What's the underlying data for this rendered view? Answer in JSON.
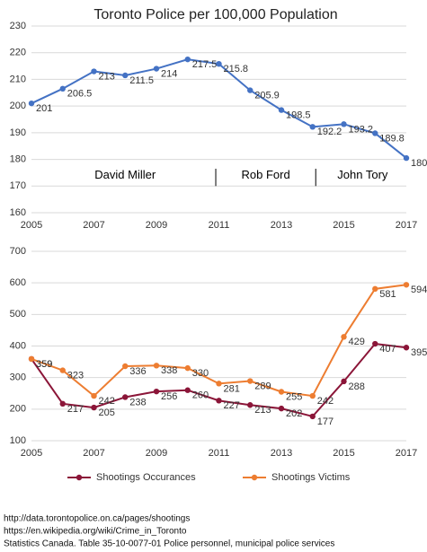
{
  "chart_data": [
    {
      "type": "line",
      "title": "Toronto Police per 100,000 Population",
      "x": [
        2005,
        2006,
        2007,
        2008,
        2009,
        2010,
        2011,
        2012,
        2013,
        2014,
        2015,
        2016,
        2017
      ],
      "series": [
        {
          "color": "#4472c4",
          "values": [
            201,
            206.5,
            213,
            211.5,
            214,
            217.5,
            215.8,
            205.9,
            198.5,
            192.2,
            193.2,
            189.8,
            180.5
          ]
        }
      ],
      "xlim": [
        2005,
        2017
      ],
      "xticks": [
        2005,
        2007,
        2009,
        2011,
        2013,
        2015,
        2017
      ],
      "ylim": [
        160,
        230
      ],
      "yticks": [
        160,
        170,
        180,
        190,
        200,
        210,
        220,
        230
      ],
      "grid": true,
      "annotations": [
        "David Miller",
        "Rob Ford",
        "John Tory"
      ]
    },
    {
      "type": "line",
      "x": [
        2005,
        2006,
        2007,
        2008,
        2009,
        2010,
        2011,
        2012,
        2013,
        2014,
        2015,
        2016,
        2017
      ],
      "series": [
        {
          "name": "Shootings Occurances",
          "color": "#8b1538",
          "values": [
            359,
            217,
            205,
            238,
            256,
            260,
            227,
            213,
            202,
            177,
            288,
            407,
            395
          ]
        },
        {
          "name": "Shootings Victims",
          "color": "#ed7d31",
          "values": [
            359,
            323,
            242,
            336,
            338,
            330,
            281,
            289,
            255,
            242,
            429,
            581,
            594
          ]
        }
      ],
      "xlim": [
        2005,
        2017
      ],
      "xticks": [
        2005,
        2007,
        2009,
        2011,
        2013,
        2015,
        2017
      ],
      "ylim": [
        100,
        700
      ],
      "yticks": [
        100,
        200,
        300,
        400,
        500,
        600,
        700
      ],
      "grid": true,
      "legend": "bottom"
    }
  ],
  "sources": [
    "http://data.torontopolice.on.ca/pages/shootings",
    "https://en.wikipedia.org/wiki/Crime_in_Toronto",
    "Statistics Canada. Table  35-10-0077-01 Police personnel, municipal police services"
  ]
}
